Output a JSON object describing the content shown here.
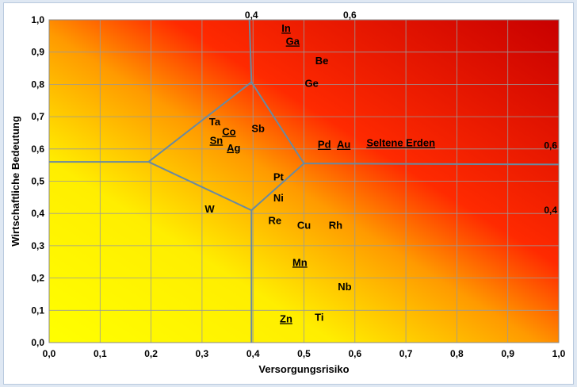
{
  "chart_data": {
    "type": "scatter",
    "title": "",
    "xlabel": "Versorgungsrisiko",
    "ylabel": "Wirtschaftliche Bedeutung",
    "xlim": [
      0.0,
      1.0
    ],
    "ylim": [
      0.0,
      1.0
    ],
    "xticks": [
      "0,0",
      "0,1",
      "0,2",
      "0,3",
      "0,4",
      "0,5",
      "0,6",
      "0,7",
      "0,8",
      "0,9",
      "1,0"
    ],
    "yticks": [
      "0,0",
      "0,1",
      "0,2",
      "0,3",
      "0,4",
      "0,5",
      "0,6",
      "0,7",
      "0,8",
      "0,9",
      "1,0"
    ],
    "grid": true,
    "background": "gradient from yellow (bottom-left) through orange to red (top-right)",
    "colors": {
      "low": "#ffff00",
      "mid": "#ff9900",
      "high_a": "#ff1a00",
      "high_b": "#c80000",
      "boundary": "#6a8aa0",
      "frame_bg": "#dfe8f3"
    },
    "elements": [
      {
        "label": "In",
        "x": 0.465,
        "y": 0.975,
        "underline": true
      },
      {
        "label": "Ga",
        "x": 0.478,
        "y": 0.935,
        "underline": true
      },
      {
        "label": "Be",
        "x": 0.535,
        "y": 0.875,
        "underline": false
      },
      {
        "label": "Ge",
        "x": 0.515,
        "y": 0.805,
        "underline": false
      },
      {
        "label": "Ta",
        "x": 0.325,
        "y": 0.685,
        "underline": false
      },
      {
        "label": "Co",
        "x": 0.353,
        "y": 0.655,
        "underline": true
      },
      {
        "label": "Sn",
        "x": 0.328,
        "y": 0.628,
        "underline": true
      },
      {
        "label": "Ag",
        "x": 0.362,
        "y": 0.605,
        "underline": true
      },
      {
        "label": "Sb",
        "x": 0.41,
        "y": 0.665,
        "underline": false
      },
      {
        "label": "Pd",
        "x": 0.54,
        "y": 0.615,
        "underline": true
      },
      {
        "label": "Au",
        "x": 0.578,
        "y": 0.615,
        "underline": true
      },
      {
        "label": "Seltene Erden",
        "x": 0.69,
        "y": 0.62,
        "underline": true
      },
      {
        "label": "Pt",
        "x": 0.45,
        "y": 0.515,
        "underline": false
      },
      {
        "label": "Ni",
        "x": 0.45,
        "y": 0.45,
        "underline": false
      },
      {
        "label": "W",
        "x": 0.315,
        "y": 0.415,
        "underline": false
      },
      {
        "label": "Re",
        "x": 0.443,
        "y": 0.38,
        "underline": false
      },
      {
        "label": "Cu",
        "x": 0.5,
        "y": 0.365,
        "underline": false
      },
      {
        "label": "Rh",
        "x": 0.562,
        "y": 0.365,
        "underline": false
      },
      {
        "label": "Mn",
        "x": 0.492,
        "y": 0.25,
        "underline": true
      },
      {
        "label": "Nb",
        "x": 0.58,
        "y": 0.175,
        "underline": false
      },
      {
        "label": "Zn",
        "x": 0.465,
        "y": 0.075,
        "underline": true
      },
      {
        "label": "Ti",
        "x": 0.53,
        "y": 0.08,
        "underline": false
      }
    ],
    "boundaries": [
      {
        "points": [
          [
            0.0,
            0.56
          ],
          [
            0.195,
            0.56
          ]
        ]
      },
      {
        "points": [
          [
            0.195,
            0.56
          ],
          [
            0.397,
            0.807
          ],
          [
            0.5,
            0.555
          ],
          [
            0.397,
            0.41
          ],
          [
            0.195,
            0.56
          ]
        ]
      },
      {
        "points": [
          [
            0.397,
            0.807
          ],
          [
            0.393,
            1.0
          ]
        ]
      },
      {
        "points": [
          [
            0.397,
            0.41
          ],
          [
            0.397,
            0.0
          ]
        ]
      },
      {
        "points": [
          [
            0.5,
            0.555
          ],
          [
            1.0,
            0.552
          ]
        ]
      }
    ],
    "annotations": [
      {
        "text": "0,4",
        "x": 0.397,
        "y": 1.0,
        "anchor": "top-center"
      },
      {
        "text": "0,6",
        "x": 0.59,
        "y": 1.0,
        "anchor": "top-center"
      },
      {
        "text": "0,6",
        "x": 1.0,
        "y": 0.61,
        "anchor": "right"
      },
      {
        "text": "0,4",
        "x": 1.0,
        "y": 0.41,
        "anchor": "right"
      }
    ]
  }
}
